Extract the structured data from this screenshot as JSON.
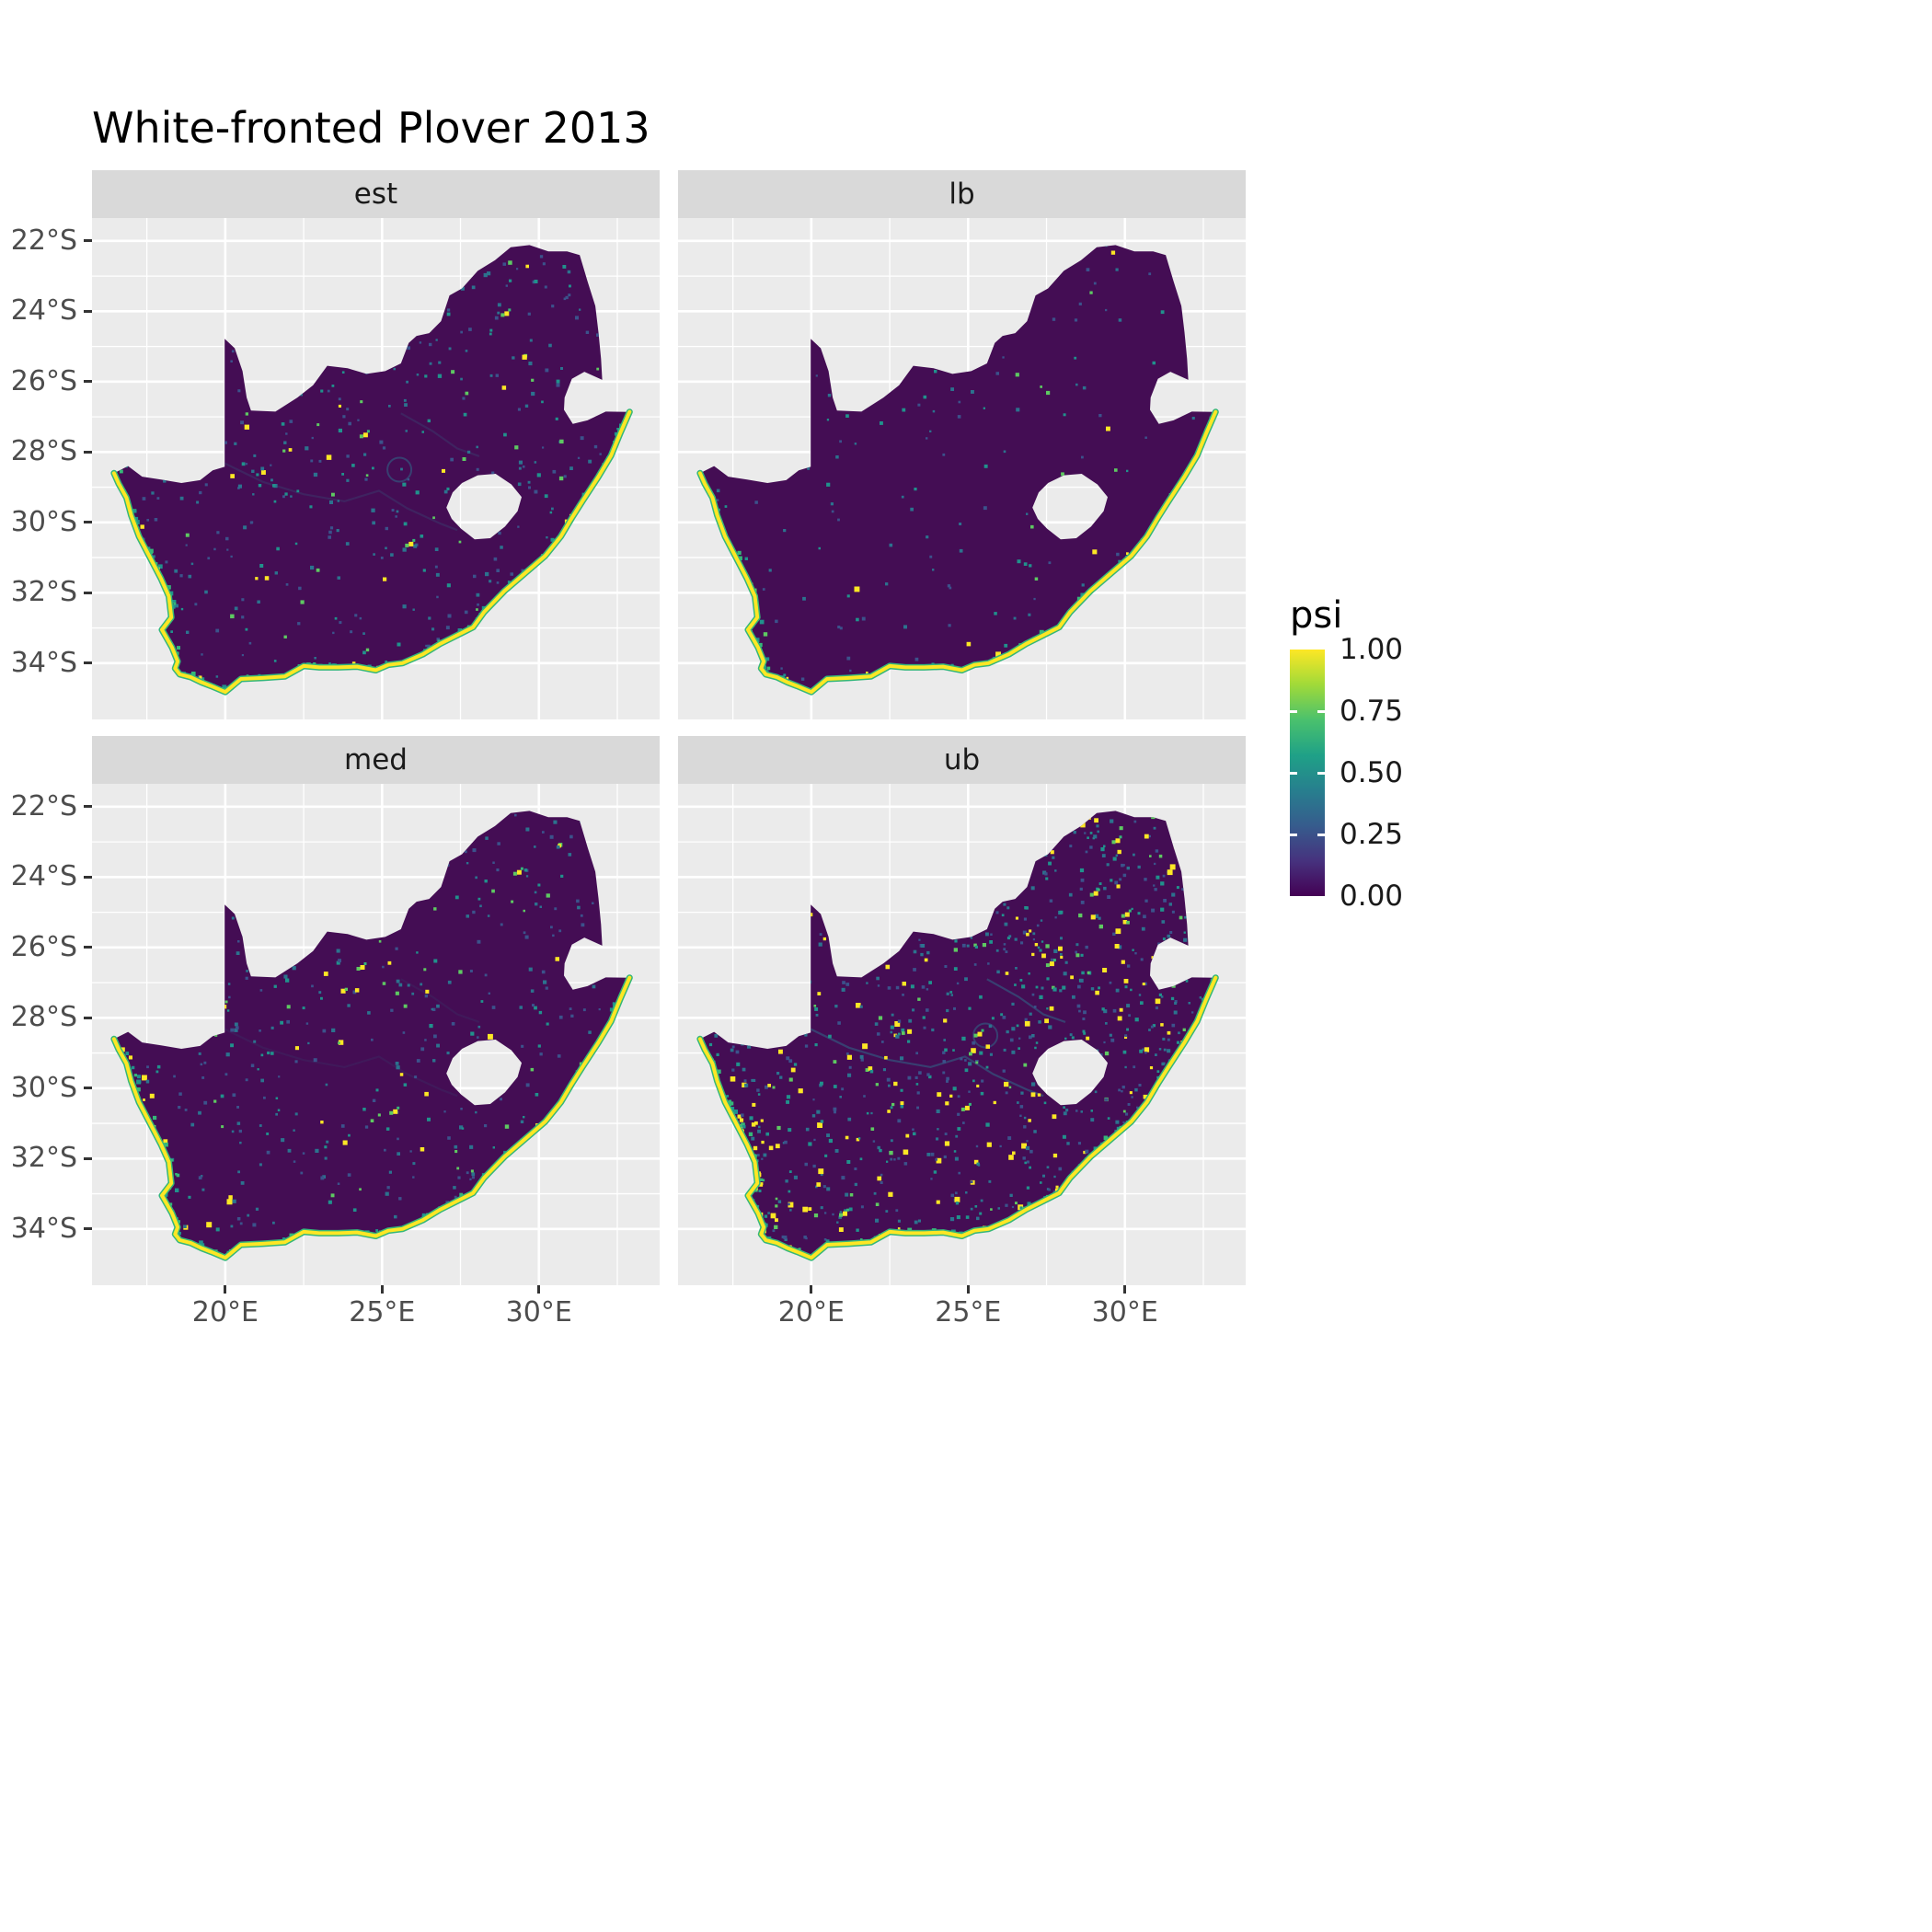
{
  "title": "White-fronted Plover 2013",
  "facets": [
    {
      "label": "est",
      "seed": 101,
      "speckle_count": 780,
      "yellow_p": 0.05,
      "coast_dots": 190,
      "river_opacity": 0.22,
      "ring": true,
      "hotspots": [
        [
          25.85,
          30.55
        ],
        [
          24.4,
          27.45
        ],
        [
          28.9,
          24.0
        ]
      ]
    },
    {
      "label": "lb",
      "seed": 202,
      "speckle_count": 300,
      "yellow_p": 0.02,
      "coast_dots": 150,
      "river_opacity": 0,
      "ring": false,
      "hotspots": []
    },
    {
      "label": "med",
      "seed": 303,
      "speckle_count": 680,
      "yellow_p": 0.06,
      "coast_dots": 190,
      "river_opacity": 0.12,
      "ring": false,
      "hotspots": [
        [
          25.35,
          30.6
        ],
        [
          24.3,
          26.5
        ],
        [
          29.3,
          23.8
        ]
      ]
    },
    {
      "label": "ub",
      "seed": 404,
      "speckle_count": 1700,
      "yellow_p": 0.16,
      "coast_dots": 290,
      "river_opacity": 0.5,
      "ring": true,
      "hotspots": [
        [
          24.9,
          30.5
        ],
        [
          27.6,
          26.4
        ],
        [
          29.0,
          24.4
        ],
        [
          30.0,
          25.0
        ],
        [
          25.3,
          28.4
        ],
        [
          29.7,
          22.9
        ],
        [
          21.0,
          33.5
        ]
      ]
    }
  ],
  "axes": {
    "x": {
      "ticks": [
        {
          "label": "20°E",
          "lon": 20
        },
        {
          "label": "25°E",
          "lon": 25
        },
        {
          "label": "30°E",
          "lon": 30
        }
      ]
    },
    "y": {
      "ticks": [
        {
          "label": "22°S",
          "lat": 22
        },
        {
          "label": "24°S",
          "lat": 24
        },
        {
          "label": "26°S",
          "lat": 26
        },
        {
          "label": "28°S",
          "lat": 28
        },
        {
          "label": "30°S",
          "lat": 30
        },
        {
          "label": "32°S",
          "lat": 32
        },
        {
          "label": "34°S",
          "lat": 34
        }
      ]
    }
  },
  "legend": {
    "title": "psi",
    "labels": [
      "1.00",
      "0.75",
      "0.50",
      "0.25",
      "0.00"
    ],
    "values": [
      1,
      0.75,
      0.5,
      0.25,
      0
    ]
  },
  "colors": {
    "background": "#FFFFFF",
    "panel_bg": "#EBEBEB",
    "strip_bg": "#D9D9D9",
    "strip_text": "#1A1A1A",
    "axis_text": "#4D4D4D",
    "title_text": "#000000",
    "map_fill": "#440D54",
    "coast_yellow": "#FDE725",
    "coast_green": "#35B779",
    "speckle_teal": "#21918C",
    "speckle_blue": "#2C728E",
    "speckle_navy": "#3B528B",
    "speckle_green": "#5EC962",
    "viridis": [
      "#440154",
      "#46327E",
      "#365C8D",
      "#277F8E",
      "#1FA187",
      "#4AC16D",
      "#A0DA39",
      "#FDE725"
    ]
  },
  "chart_data": {
    "type": "heatmap",
    "subtype": "faceted-raster-map",
    "title": "White-fronted Plover 2013",
    "region": "South Africa outline with Lesotho hole and Eswatini notch shown as background",
    "facets": [
      "est",
      "lb",
      "med",
      "ub"
    ],
    "facet_layout": [
      [
        "est",
        "lb"
      ],
      [
        "med",
        "ub"
      ]
    ],
    "value": {
      "name": "psi",
      "range": [
        0.0,
        1.0
      ],
      "colormap": "viridis",
      "legend_breaks": [
        "1.00",
        "0.75",
        "0.50",
        "0.25",
        "0.00"
      ]
    },
    "x_axis": {
      "ticks": [
        "20°E",
        "25°E",
        "30°E"
      ],
      "approx_range_deg_east": [
        15.75,
        33.85
      ]
    },
    "y_axis": {
      "ticks": [
        "22°S",
        "24°S",
        "26°S",
        "28°S",
        "30°S",
        "32°S",
        "34°S"
      ],
      "approx_range_deg_south": [
        21.35,
        35.6
      ]
    },
    "pattern": "Interior of South Africa is psi ≈ 0 (dark purple) in every facet; the full coastline is psi ≈ 1 (yellow fringe with green/teal just inside); scattered low-to-mid psi cells inland. Relative density of non-zero cells: lb < est ≈ med < ub; ub shows many bright yellow inland cells and visible teal river/road traces.",
    "grid": {
      "major_gridlines": true,
      "minor_gridlines": true,
      "panel_background": "#EBEBEB"
    }
  }
}
